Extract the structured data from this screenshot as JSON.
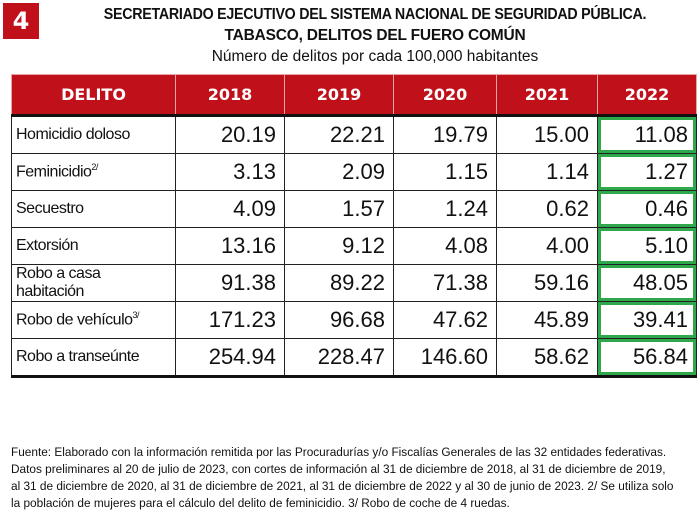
{
  "badge": {
    "number": "4"
  },
  "header": {
    "title_line1": "SECRETARIADO EJECUTIVO DEL SISTEMA NACIONAL DE SEGURIDAD PÚBLICA.",
    "title_line2": "TABASCO, DELITOS DEL FUERO COMÚN",
    "subtitle": "Número de delitos por cada 100,000 habitantes"
  },
  "table": {
    "columns": [
      "DELITO",
      "2018",
      "2019",
      "2020",
      "2021",
      "2022"
    ],
    "highlight_column": "2022",
    "highlight_color": "#2ea84a",
    "header_color": "#c0101a",
    "rows": [
      {
        "label": "Homicidio doloso",
        "note": "",
        "values": [
          "20.19",
          "22.21",
          "19.79",
          "15.00",
          "11.08"
        ]
      },
      {
        "label": "Feminicidio",
        "note": "2/",
        "values": [
          "3.13",
          "2.09",
          "1.15",
          "1.14",
          "1.27"
        ]
      },
      {
        "label": "Secuestro",
        "note": "",
        "values": [
          "4.09",
          "1.57",
          "1.24",
          "0.62",
          "0.46"
        ]
      },
      {
        "label": "Extorsión",
        "note": "",
        "values": [
          "13.16",
          "9.12",
          "4.08",
          "4.00",
          "5.10"
        ]
      },
      {
        "label": "Robo a casa habitación",
        "note": "",
        "values": [
          "91.38",
          "89.22",
          "71.38",
          "59.16",
          "48.05"
        ]
      },
      {
        "label": "Robo de vehículo",
        "note": "3/",
        "values": [
          "171.23",
          "96.68",
          "47.62",
          "45.89",
          "39.41"
        ]
      },
      {
        "label": "Robo a transeúnte",
        "note": "",
        "values": [
          "254.94",
          "228.47",
          "146.60",
          "58.62",
          "56.84"
        ]
      }
    ]
  },
  "footnote": "Fuente: Elaborado con la información remitida por las Procuradurías y/o Fiscalías Generales de las 32 entidades federativas. Datos preliminares al 20 de julio de 2023, con cortes de información al 31 de diciembre de 2018, al 31 de diciembre de 2019, al 31 de diciembre de 2020, al 31 de diciembre de 2021, al 31 de diciembre de 2022 y al 30 de junio de 2023. 2/ Se utiliza solo la población de mujeres para el cálculo del delito de feminicidio. 3/ Robo de coche de 4 ruedas."
}
